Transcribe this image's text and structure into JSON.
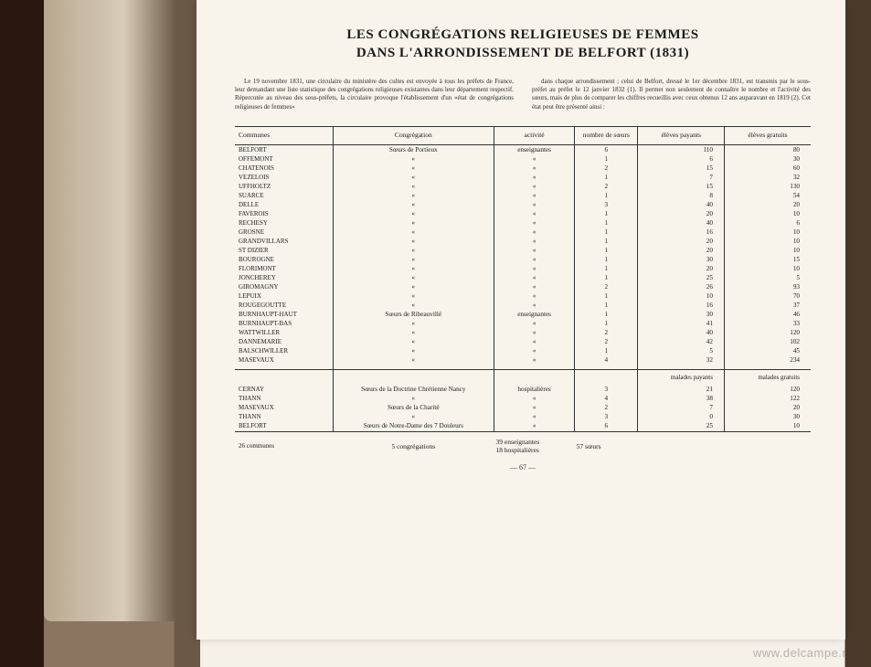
{
  "title": {
    "line1": "LES CONGRÉGATIONS RELIGIEUSES DE FEMMES",
    "line2": "DANS L'ARRONDISSEMENT DE BELFORT (1831)"
  },
  "intro": {
    "left": "Le 19 novembre 1831, une circulaire du ministère des cultes est envoyée à tous les préfets de France, leur demandant une liste statistique des congrégations religieuses existantes dans leur département respectif. Répercutée au niveau des sous-préfets, la circulaire provoque l'établissement d'un «état de congrégations religieuses de femmes»",
    "right": "dans chaque arrondissement ; celui de Belfort, dressé le 1er décembre 1831, est transmis par le sous-préfet au préfet le 12 janvier 1832 (1). Il permet non seulement de connaître le nombre et l'activité des sœurs, mais de plus de comparer les chiffres recueillis avec ceux obtenus 12 ans auparavant en 1819 (2). Cet état peut être présenté ainsi :"
  },
  "headers": {
    "communes": "Communes",
    "congregation": "Congrégation",
    "activite": "activité",
    "nombre": "nombre de sœurs",
    "payants": "élèves payants",
    "gratuits": "élèves gratuits"
  },
  "headers2": {
    "malades_payants": "malades payants",
    "malades_gratuits": "malades gratuits"
  },
  "rows1": [
    {
      "commune": "BELFORT",
      "cong": "Sœurs de Portieux",
      "act": "enseignantes",
      "n": "6",
      "p": "110",
      "g": "80"
    },
    {
      "commune": "OFFEMONT",
      "cong": "«",
      "act": "«",
      "n": "1",
      "p": "6",
      "g": "30"
    },
    {
      "commune": "CHATENOIS",
      "cong": "«",
      "act": "«",
      "n": "2",
      "p": "15",
      "g": "60"
    },
    {
      "commune": "VEZELOIS",
      "cong": "«",
      "act": "«",
      "n": "1",
      "p": "7",
      "g": "32"
    },
    {
      "commune": "UFFHOLTZ",
      "cong": "«",
      "act": "«",
      "n": "2",
      "p": "15",
      "g": "130"
    },
    {
      "commune": "SUARCE",
      "cong": "«",
      "act": "«",
      "n": "1",
      "p": "8",
      "g": "54"
    },
    {
      "commune": "DELLE",
      "cong": "«",
      "act": "«",
      "n": "3",
      "p": "40",
      "g": "20"
    },
    {
      "commune": "FAVEROIS",
      "cong": "«",
      "act": "«",
      "n": "1",
      "p": "20",
      "g": "10"
    },
    {
      "commune": "RECHESY",
      "cong": "«",
      "act": "«",
      "n": "1",
      "p": "40",
      "g": "6"
    },
    {
      "commune": "GROSNE",
      "cong": "«",
      "act": "«",
      "n": "1",
      "p": "16",
      "g": "10"
    },
    {
      "commune": "GRANDVILLARS",
      "cong": "«",
      "act": "«",
      "n": "1",
      "p": "20",
      "g": "10"
    },
    {
      "commune": "ST DIZIER",
      "cong": "«",
      "act": "«",
      "n": "1",
      "p": "20",
      "g": "10"
    },
    {
      "commune": "BOUROGNE",
      "cong": "«",
      "act": "«",
      "n": "1",
      "p": "30",
      "g": "15"
    },
    {
      "commune": "FLORIMONT",
      "cong": "«",
      "act": "«",
      "n": "1",
      "p": "20",
      "g": "10"
    },
    {
      "commune": "JONCHEREY",
      "cong": "«",
      "act": "«",
      "n": "1",
      "p": "25",
      "g": "5"
    },
    {
      "commune": "GIROMAGNY",
      "cong": "«",
      "act": "«",
      "n": "2",
      "p": "26",
      "g": "93"
    },
    {
      "commune": "LEPUIX",
      "cong": "«",
      "act": "«",
      "n": "1",
      "p": "10",
      "g": "70"
    },
    {
      "commune": "ROUGEGOUTTE",
      "cong": "«",
      "act": "«",
      "n": "1",
      "p": "16",
      "g": "37"
    },
    {
      "commune": "BURNHAUPT-HAUT",
      "cong": "Sœurs de Ribeauvillé",
      "act": "enseignantes",
      "n": "1",
      "p": "30",
      "g": "46"
    },
    {
      "commune": "BURNHAUPT-BAS",
      "cong": "«",
      "act": "«",
      "n": "1",
      "p": "41",
      "g": "33"
    },
    {
      "commune": "WATTWILLER",
      "cong": "«",
      "act": "«",
      "n": "2",
      "p": "40",
      "g": "120"
    },
    {
      "commune": "DANNEMARIE",
      "cong": "«",
      "act": "«",
      "n": "2",
      "p": "42",
      "g": "102"
    },
    {
      "commune": "BALSCHWILLER",
      "cong": "«",
      "act": "«",
      "n": "1",
      "p": "5",
      "g": "45"
    },
    {
      "commune": "MASEVAUX",
      "cong": "«",
      "act": "«",
      "n": "4",
      "p": "32",
      "g": "234"
    }
  ],
  "rows2": [
    {
      "commune": "CERNAY",
      "cong": "Sœurs de la Doctrine Chrétienne Nancy",
      "act": "hospitalières",
      "n": "3",
      "p": "21",
      "g": "120"
    },
    {
      "commune": "THANN",
      "cong": "«",
      "act": "«",
      "n": "4",
      "p": "38",
      "g": "122"
    },
    {
      "commune": "MASEVAUX",
      "cong": "Sœurs de la Charité",
      "act": "«",
      "n": "2",
      "p": "7",
      "g": "20"
    },
    {
      "commune": "THANN",
      "cong": "«",
      "act": "«",
      "n": "3",
      "p": "0",
      "g": "30"
    },
    {
      "commune": "BELFORT",
      "cong": "Sœurs de Notre-Dame des 7 Douleurs",
      "act": "«",
      "n": "6",
      "p": "25",
      "g": "10"
    }
  ],
  "totals": {
    "communes": "26 communes",
    "congregations": "5 congrégations",
    "enseignantes": "39 enseignantes",
    "hospitalieres": "18 hospitalières",
    "soeurs": "57 sœurs"
  },
  "page_number": "— 67 —",
  "watermark": "www.delcampe.net"
}
